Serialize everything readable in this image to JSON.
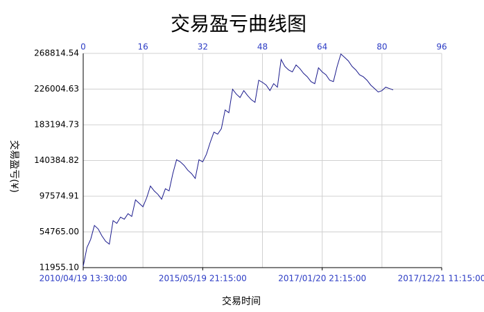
{
  "chart_data": {
    "type": "line",
    "title": "交易盈亏曲线图",
    "x_label": "交易时间",
    "y_label": "交易盈亏(¥)",
    "series": [
      {
        "name": "交易盈亏",
        "color": "#1a1a8c",
        "values": [
          13600,
          36000,
          45900,
          62500,
          58400,
          50100,
          43500,
          40100,
          68300,
          65000,
          72500,
          70000,
          76600,
          73300,
          93200,
          89100,
          84900,
          95700,
          109800,
          104000,
          99800,
          94000,
          106500,
          104000,
          124700,
          141300,
          138800,
          134600,
          128800,
          124700,
          118900,
          141300,
          138800,
          147900,
          162000,
          174400,
          172000,
          178600,
          201000,
          197700,
          225800,
          220000,
          215900,
          224200,
          218400,
          213400,
          210100,
          236600,
          234100,
          230800,
          224200,
          232500,
          228300,
          261500,
          253200,
          249000,
          246600,
          254900,
          250700,
          244900,
          240800,
          235000,
          232500,
          251500,
          246600,
          243200,
          236600,
          235000,
          253200,
          268100,
          264000,
          259800,
          253200,
          249000,
          243200,
          240800,
          236600,
          230800,
          226700,
          222500,
          224200,
          228300,
          226700,
          225000
        ]
      }
    ],
    "xlim": [
      0,
      96
    ],
    "xticks": [
      0,
      16,
      32,
      48,
      64,
      80,
      96
    ],
    "x_bottom_ticks": [
      {
        "value": 0,
        "label": "2010/04/19 13:30:00"
      },
      {
        "value": 32,
        "label": "2015/05/19 21:15:00"
      },
      {
        "value": 64,
        "label": "2017/01/20 21:15:00"
      },
      {
        "value": 96,
        "label": "2017/12/21 11:15:00"
      }
    ],
    "ylim": [
      11955.1,
      268814.54
    ],
    "yticks": [
      {
        "value": 11955.1,
        "label": "11955.10"
      },
      {
        "value": 54765,
        "label": "54765.00"
      },
      97574.91,
      140384.82,
      183194.73,
      226004.63,
      268814.54
    ],
    "grid": true
  }
}
